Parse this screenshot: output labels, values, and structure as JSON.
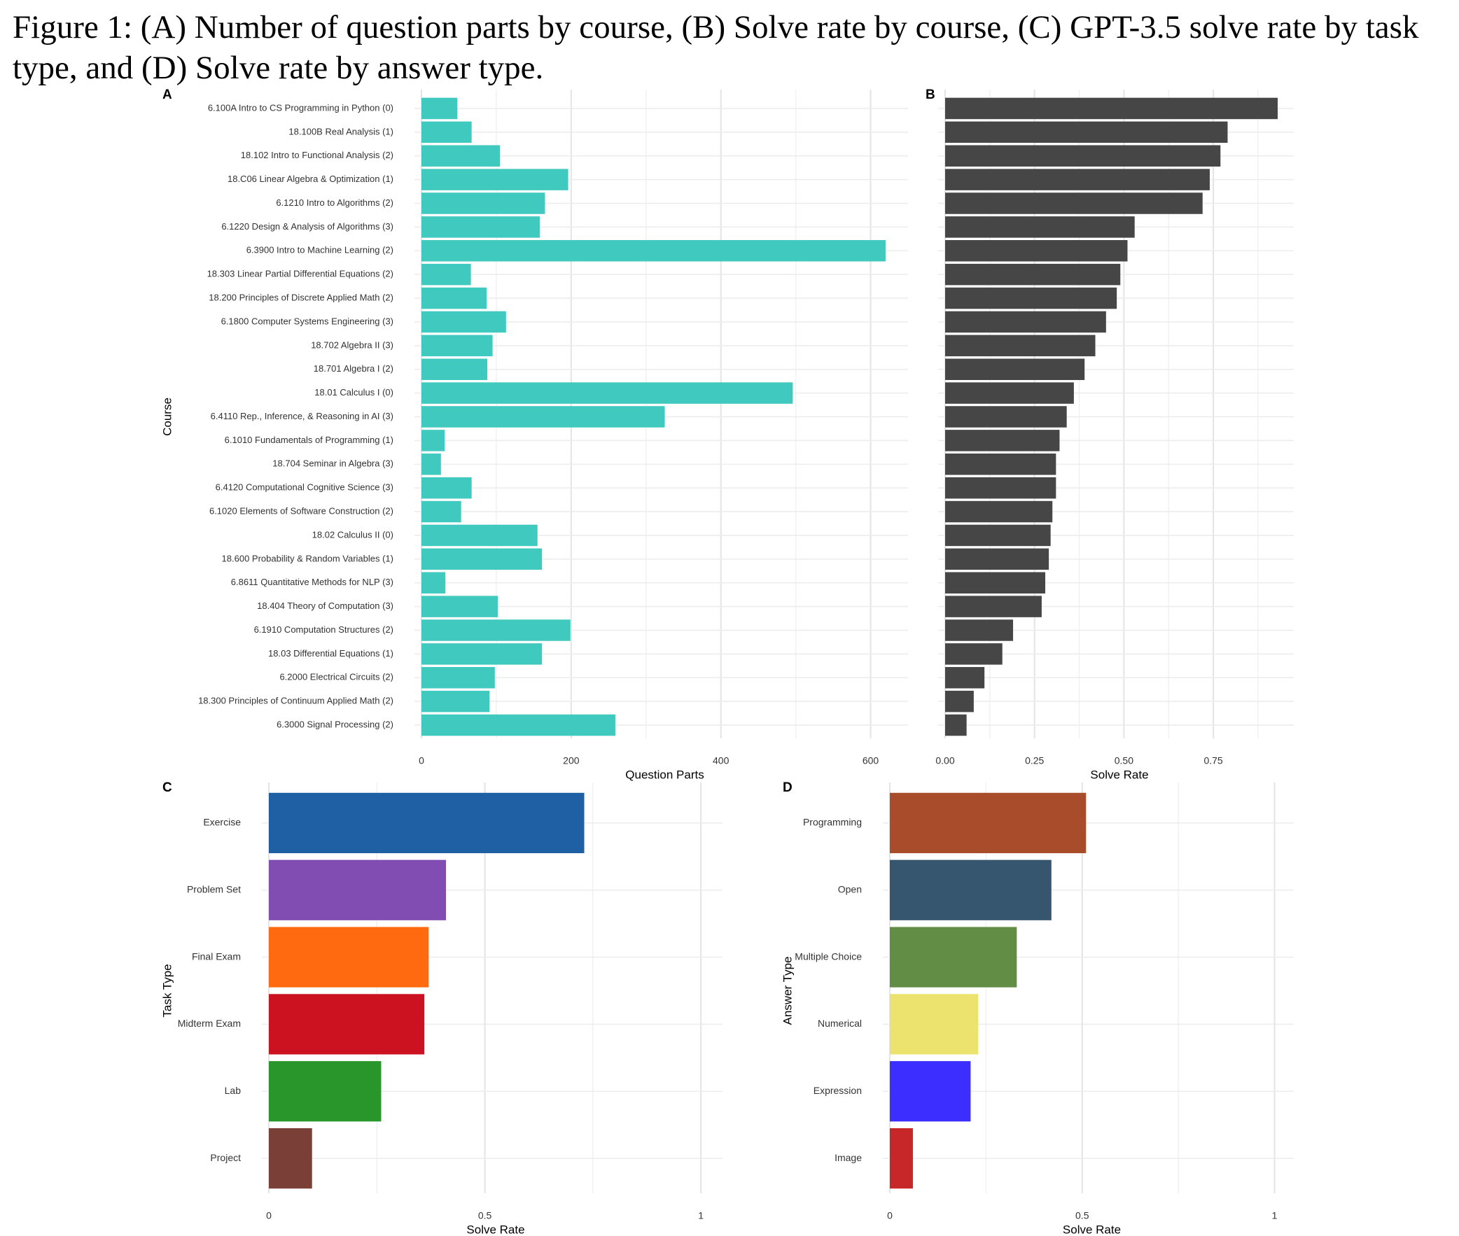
{
  "caption": "Figure 1: (A) Number of question parts by course, (B) Solve rate by course, (C) GPT-3.5 solve rate by task type, and (D) Solve rate by answer type.",
  "chart_data": [
    {
      "panel": "A",
      "type": "bar",
      "orientation": "horizontal",
      "xlabel": "Question Parts",
      "ylabel": "Course",
      "xlim": [
        0,
        650
      ],
      "xticks": [
        0,
        200,
        400,
        600
      ],
      "bar_color": "#40c9bf",
      "grid": true,
      "categories": [
        "6.100A Intro to CS Programming in Python (0)",
        "18.100B Real Analysis (1)",
        "18.102 Intro to Functional Analysis (2)",
        "18.C06 Linear Algebra & Optimization (1)",
        "6.1210 Intro to Algorithms (2)",
        "6.1220 Design & Analysis of Algorithms (3)",
        "6.3900 Intro to Machine Learning (2)",
        "18.303 Linear Partial Differential Equations (2)",
        "18.200 Principles of Discrete Applied Math (2)",
        "6.1800 Computer Systems Engineering (3)",
        "18.702 Algebra II (3)",
        "18.701 Algebra I (2)",
        "18.01 Calculus I (0)",
        "6.4110 Rep., Inference, & Reasoning in AI (3)",
        "6.1010 Fundamentals of Programming (1)",
        "18.704 Seminar in Algebra (3)",
        "6.4120 Computational Cognitive Science (3)",
        "6.1020 Elements of Software Construction (2)",
        "18.02 Calculus II (0)",
        "18.600 Probability & Random Variables (1)",
        "6.8611 Quantitative Methods for NLP (3)",
        "18.404 Theory of Computation (3)",
        "6.1910 Computation Structures (2)",
        "18.03 Differential Equations (1)",
        "6.2000 Electrical Circuits (2)",
        "18.300 Principles of Continuum Applied Math (2)",
        "6.3000 Signal Processing (2)"
      ],
      "values": [
        48,
        67,
        105,
        196,
        165,
        158,
        620,
        66,
        87,
        113,
        95,
        88,
        496,
        325,
        31,
        26,
        67,
        53,
        155,
        161,
        32,
        102,
        199,
        161,
        98,
        91,
        259
      ]
    },
    {
      "panel": "B",
      "type": "bar",
      "orientation": "horizontal",
      "xlabel": "Solve Rate",
      "xlim": [
        0,
        0.975
      ],
      "xticks": [
        "0.00",
        "0.25",
        "0.50",
        "0.75"
      ],
      "bar_color": "#464646",
      "grid": true,
      "values": [
        0.93,
        0.79,
        0.77,
        0.74,
        0.72,
        0.53,
        0.51,
        0.49,
        0.48,
        0.45,
        0.42,
        0.39,
        0.36,
        0.34,
        0.32,
        0.31,
        0.31,
        0.3,
        0.295,
        0.29,
        0.28,
        0.27,
        0.19,
        0.16,
        0.11,
        0.08,
        0.06
      ]
    },
    {
      "panel": "C",
      "type": "bar",
      "orientation": "horizontal",
      "xlabel": "Solve Rate",
      "ylabel": "Task Type",
      "xlim": [
        0,
        1.05
      ],
      "xticks": [
        "0",
        "0.5",
        "1"
      ],
      "grid": true,
      "categories": [
        "Exercise",
        "Problem Set",
        "Final Exam",
        "Midterm Exam",
        "Lab",
        "Project"
      ],
      "values": [
        0.73,
        0.41,
        0.37,
        0.36,
        0.26,
        0.1
      ],
      "colors": [
        "#1f5fa3",
        "#814db3",
        "#ff6a10",
        "#cc1220",
        "#28962a",
        "#7a4038"
      ]
    },
    {
      "panel": "D",
      "type": "bar",
      "orientation": "horizontal",
      "xlabel": "Solve Rate",
      "ylabel": "Answer Type",
      "xlim": [
        0,
        1.05
      ],
      "xticks": [
        "0",
        "0.5",
        "1"
      ],
      "grid": true,
      "categories": [
        "Programming",
        "Open",
        "Multiple Choice",
        "Numerical",
        "Expression",
        "Image"
      ],
      "values": [
        0.51,
        0.42,
        0.33,
        0.23,
        0.21,
        0.06
      ],
      "colors": [
        "#a84c2c",
        "#365670",
        "#628d44",
        "#ebe36e",
        "#3b2eff",
        "#c8272a"
      ]
    }
  ]
}
